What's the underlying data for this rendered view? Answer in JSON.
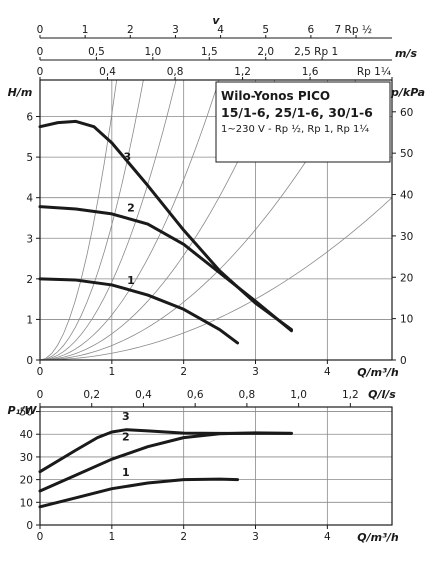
{
  "chart_data": [
    {
      "type": "line",
      "title": "Wilo-Yonos PICO",
      "subtitle": "15/1-6, 25/1-6, 30/1-6",
      "note": "1~230 V - Rp ½, Rp 1, Rp 1¼",
      "xlabel": "Q/m³/h",
      "ylabel": "H/m",
      "ylabel_right": "p/kPa",
      "xlim": [
        0,
        4.9
      ],
      "ylim": [
        0,
        6.9
      ],
      "x_ticks": [
        "0",
        "1",
        "2",
        "3",
        "4"
      ],
      "y_ticks": [
        "0",
        "1",
        "2",
        "3",
        "4",
        "5",
        "6"
      ],
      "y_right_ticks": [
        "0",
        "10",
        "20",
        "30",
        "40",
        "50",
        "60"
      ],
      "grid": true,
      "series": [
        {
          "name": "1",
          "x": [
            0,
            0.5,
            1.0,
            1.5,
            2.0,
            2.5,
            2.75
          ],
          "y": [
            2.0,
            1.97,
            1.85,
            1.6,
            1.25,
            0.75,
            0.42
          ]
        },
        {
          "name": "2",
          "x": [
            0,
            0.5,
            1.0,
            1.5,
            2.0,
            2.5,
            3.0,
            3.5
          ],
          "y": [
            3.78,
            3.72,
            3.6,
            3.35,
            2.85,
            2.15,
            1.45,
            0.72
          ]
        },
        {
          "name": "3",
          "x": [
            0,
            0.25,
            0.5,
            0.75,
            1.0,
            1.5,
            2.0,
            2.5,
            3.0,
            3.5
          ],
          "y": [
            5.75,
            5.85,
            5.88,
            5.75,
            5.35,
            4.3,
            3.2,
            2.2,
            1.4,
            0.75
          ]
        }
      ],
      "system_curve_coefficients": [
        6.0,
        2.8,
        1.55,
        0.9,
        0.52,
        0.3,
        0.165
      ],
      "top_axes": [
        {
          "label": "v",
          "unit": "",
          "ticks": [
            "0",
            "1",
            "2",
            "3",
            "4",
            "5",
            "6",
            "7 Rp ½"
          ],
          "scale_m3h": 0.625
        },
        {
          "label": "m/s",
          "unit": "",
          "ticks": [
            "0",
            "0,5",
            "1,0",
            "1,5",
            "2,0",
            "2,5 Rp 1"
          ],
          "scale_m3h": 1.59
        },
        {
          "label": "",
          "unit": "",
          "ticks": [
            "0",
            "0,4",
            "0,8",
            "1,2",
            "1,6",
            "Rp 1¼"
          ],
          "scale_m3h": 2.35
        }
      ],
      "top_axis_unit": "m/s"
    },
    {
      "type": "line",
      "xlabel": "Q/m³/h",
      "xlabel_secondary": "Q/l/s",
      "ylabel": "P₁/W",
      "xlim": [
        0,
        4.9
      ],
      "ylim": [
        0,
        52
      ],
      "x_ticks": [
        "0",
        "1",
        "2",
        "3",
        "4"
      ],
      "x_secondary_ticks": [
        "0",
        "0,2",
        "0,4",
        "0,6",
        "0,8",
        "1,0",
        "1,2"
      ],
      "y_ticks": [
        "0",
        "10",
        "20",
        "30",
        "40",
        "50"
      ],
      "grid": true,
      "series": [
        {
          "name": "1",
          "x": [
            0,
            0.5,
            1.0,
            1.5,
            2.0,
            2.5,
            2.75
          ],
          "y": [
            8,
            12,
            16,
            18.5,
            20,
            20.2,
            20
          ]
        },
        {
          "name": "2",
          "x": [
            0,
            0.5,
            1.0,
            1.5,
            2.0,
            2.5,
            3.0,
            3.5
          ],
          "y": [
            15,
            22,
            29,
            34.5,
            38.5,
            40.2,
            40.6,
            40.4
          ]
        },
        {
          "name": "3",
          "x": [
            0,
            0.5,
            0.8,
            1.0,
            1.2,
            1.5,
            2.0,
            2.5,
            3.0,
            3.5
          ],
          "y": [
            23.5,
            33,
            38.5,
            41,
            42,
            41.5,
            40.5,
            40.4,
            40.4,
            40.4
          ]
        }
      ]
    }
  ]
}
